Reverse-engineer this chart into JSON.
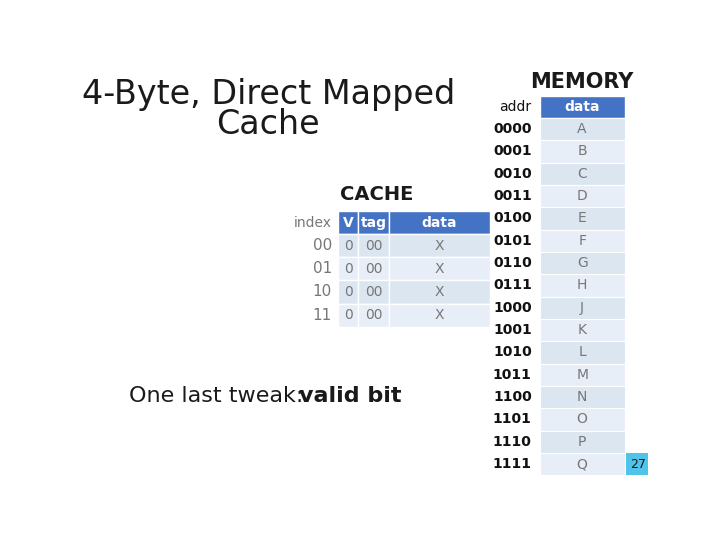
{
  "title_line1": "4-Byte, Direct Mapped",
  "title_line2": "Cache",
  "title_fontsize": 24,
  "bg_color": "#ffffff",
  "cache_label": "CACHE",
  "cache_header": [
    "V",
    "tag",
    "data"
  ],
  "cache_header_color": "#4472C4",
  "cache_header_text_color": "#ffffff",
  "cache_rows": [
    {
      "index": "00",
      "V": "0",
      "tag": "00",
      "data": "X"
    },
    {
      "index": "01",
      "V": "0",
      "tag": "00",
      "data": "X"
    },
    {
      "index": "10",
      "V": "0",
      "tag": "00",
      "data": "X"
    },
    {
      "index": "11",
      "V": "0",
      "tag": "00",
      "data": "X"
    }
  ],
  "cache_row_colors": [
    "#dce6f1",
    "#e8eef7",
    "#dce6f1",
    "#e8eef7"
  ],
  "cache_index_color": "#777777",
  "cache_data_color": "#777777",
  "bottom_text_normal": "One last tweak: ",
  "bottom_text_bold": "valid bit",
  "memory_label": "MEMORY",
  "memory_header_color": "#4472C4",
  "memory_header_text_color": "#ffffff",
  "memory_rows": [
    {
      "addr": "0000",
      "data": "A"
    },
    {
      "addr": "0001",
      "data": "B"
    },
    {
      "addr": "0010",
      "data": "C"
    },
    {
      "addr": "0011",
      "data": "D"
    },
    {
      "addr": "0100",
      "data": "E"
    },
    {
      "addr": "0101",
      "data": "F"
    },
    {
      "addr": "0110",
      "data": "G"
    },
    {
      "addr": "0111",
      "data": "H"
    },
    {
      "addr": "1000",
      "data": "J"
    },
    {
      "addr": "1001",
      "data": "K"
    },
    {
      "addr": "1010",
      "data": "L"
    },
    {
      "addr": "1011",
      "data": "M"
    },
    {
      "addr": "1100",
      "data": "N"
    },
    {
      "addr": "1101",
      "data": "O"
    },
    {
      "addr": "1110",
      "data": "P"
    },
    {
      "addr": "1111",
      "data": "Q"
    }
  ],
  "memory_row_colors": [
    "#dce6f1",
    "#e8eef7"
  ],
  "memory_addr_color": "#111111",
  "memory_data_color": "#777777",
  "page_number": "27",
  "page_number_bg": "#4fc3e8"
}
